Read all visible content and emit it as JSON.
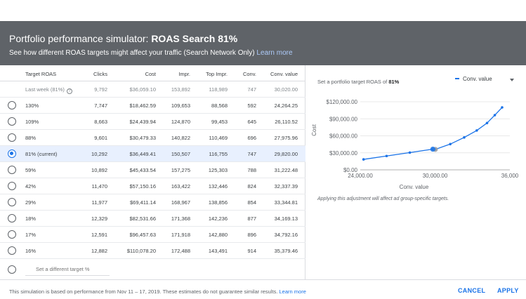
{
  "header": {
    "title_prefix": "Portfolio performance simulator:",
    "title_strong": "ROAS Search 81%",
    "subtitle": "See how different ROAS targets might affect your traffic (Search Network Only)",
    "learn_more": "Learn more"
  },
  "table": {
    "columns": [
      "Target ROAS",
      "Clicks",
      "Cost",
      "Impr.",
      "Top Impr.",
      "Conv.",
      "Conv. value"
    ],
    "last_week": {
      "label": "Last week (81%)",
      "help_icon": "?",
      "values": [
        "9,792",
        "$36,059.10",
        "153,892",
        "118,989",
        "747",
        "30,020.00"
      ]
    },
    "rows": [
      {
        "target": "130%",
        "values": [
          "7,747",
          "$18,462.59",
          "109,653",
          "88,568",
          "592",
          "24,264.25"
        ],
        "selected": false
      },
      {
        "target": "109%",
        "values": [
          "8,663",
          "$24,439.94",
          "124,870",
          "99,453",
          "645",
          "26,110.52"
        ],
        "selected": false
      },
      {
        "target": "88%",
        "values": [
          "9,601",
          "$30,479.33",
          "140,822",
          "110,469",
          "696",
          "27,975.96"
        ],
        "selected": false
      },
      {
        "target": "81% (current)",
        "values": [
          "10,292",
          "$36,449.41",
          "150,507",
          "116,755",
          "747",
          "29,820.00"
        ],
        "selected": true
      },
      {
        "target": "59%",
        "values": [
          "10,892",
          "$45,433.54",
          "157,275",
          "125,303",
          "788",
          "31,222.48"
        ],
        "selected": false
      },
      {
        "target": "42%",
        "values": [
          "11,470",
          "$57,150.16",
          "163,422",
          "132,446",
          "824",
          "32,337.39"
        ],
        "selected": false
      },
      {
        "target": "29%",
        "values": [
          "11,977",
          "$69,411.14",
          "168,967",
          "138,856",
          "854",
          "33,344.81"
        ],
        "selected": false
      },
      {
        "target": "18%",
        "values": [
          "12,329",
          "$82,531.66",
          "171,368",
          "142,236",
          "877",
          "34,169.13"
        ],
        "selected": false
      },
      {
        "target": "17%",
        "values": [
          "12,591",
          "$96,457.63",
          "171,918",
          "142,880",
          "896",
          "34,792.16"
        ],
        "selected": false
      },
      {
        "target": "16%",
        "values": [
          "12,882",
          "$110,078.20",
          "172,488",
          "143,491",
          "914",
          "35,379.46"
        ],
        "selected": false
      }
    ],
    "different_target_placeholder": "Set a different target %"
  },
  "panel": {
    "title_prefix": "Set a portfolio target ROAS of",
    "title_value": "81%",
    "series_select": "Conv. value",
    "note": "Applying this adjustment will affect ad group-specific targets."
  },
  "chart_data": {
    "type": "line",
    "xlabel": "Conv. value",
    "ylabel": "Cost",
    "xlim": [
      24000,
      36000
    ],
    "ylim": [
      0,
      120000
    ],
    "x_ticks": [
      "24,000.00",
      "30,000.00",
      "36,000"
    ],
    "y_ticks": [
      "$0.00",
      "$30,000.00",
      "$60,000.00",
      "$90,000.00",
      "$120,000.00"
    ],
    "grid": true,
    "points": [
      {
        "x": 24264.25,
        "y": 18462.59
      },
      {
        "x": 26110.52,
        "y": 24439.94
      },
      {
        "x": 27975.96,
        "y": 30479.33
      },
      {
        "x": 29820.0,
        "y": 36449.41
      },
      {
        "x": 30020.0,
        "y": 36059.1
      },
      {
        "x": 31222.48,
        "y": 45433.54
      },
      {
        "x": 32337.39,
        "y": 57150.16
      },
      {
        "x": 33344.81,
        "y": 69411.14
      },
      {
        "x": 34169.13,
        "y": 82531.66
      },
      {
        "x": 34792.16,
        "y": 96457.63
      },
      {
        "x": 35379.46,
        "y": 110078.2
      }
    ],
    "highlight_current": {
      "x": 29820.0,
      "y": 36449.41
    },
    "highlight_last_week": {
      "x": 30020.0,
      "y": 36059.1
    },
    "colors": {
      "line": "#1a73e8",
      "current": "#1a73e8",
      "last_week": "#9e9e9e"
    }
  },
  "footer": {
    "disclaimer": "This simulation is based on performance from Nov 11 – 17, 2019. These estimates do not guarantee similar results.",
    "learn_more": "Learn more",
    "cancel": "CANCEL",
    "apply": "APPLY"
  }
}
